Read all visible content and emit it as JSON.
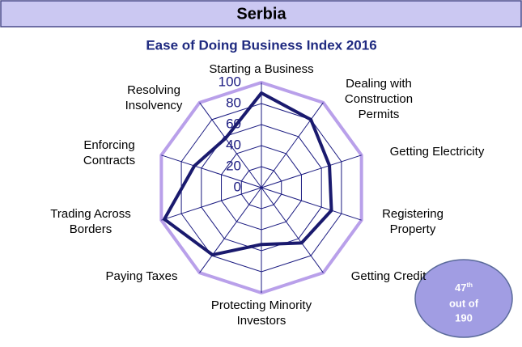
{
  "header": "Serbia",
  "badge": {
    "rank": "47",
    "suffix": "th",
    "line2": "out of",
    "line3": "190"
  },
  "chart_data": {
    "type": "radar",
    "title": "Ease of Doing Business Index 2016",
    "categories": [
      "Starting a Business",
      "Dealing with Construction Permits",
      "Getting Electricity",
      "Registering Property",
      "Getting Credit",
      "Protecting Minority Investors",
      "Paying Taxes",
      "Trading Across Borders",
      "Enforcing Contracts",
      "Resolving Insolvency"
    ],
    "values": [
      90,
      80,
      68,
      70,
      65,
      54,
      79,
      97,
      67,
      58
    ],
    "color": "#1a1a6e",
    "grid_color": "#1a1a80",
    "outer_ring_color": "#b9a0ea",
    "ylim": [
      0,
      100
    ],
    "yticks": [
      0,
      20,
      40,
      60,
      80,
      100
    ],
    "grid": true
  }
}
